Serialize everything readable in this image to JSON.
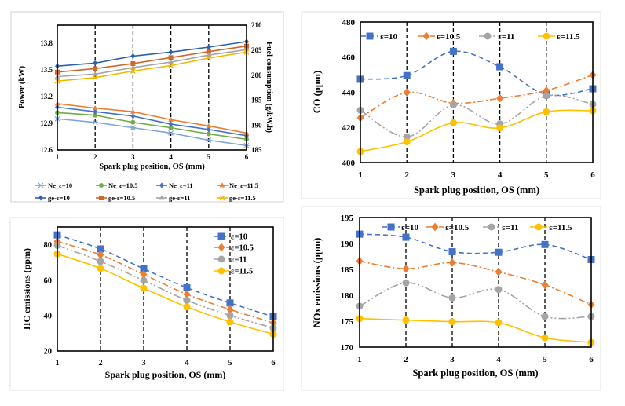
{
  "chart_data": [
    {
      "type": "line",
      "title": "",
      "xlabel": "Spark plug position, OS (mm)",
      "ylabel": "Power  (kW)",
      "y2label": "Fuel consumption  (g/kW.h)",
      "x": [
        1,
        2,
        3,
        4,
        5,
        6
      ],
      "xtick_labels": [
        "1",
        "2",
        "3",
        "4",
        "5",
        "6"
      ],
      "ylim": [
        12.6,
        14.0
      ],
      "ytick_labels": [
        "12.6",
        "12.9",
        "13.2",
        "13.5",
        "13.8"
      ],
      "y2lim": [
        185,
        210
      ],
      "y2tick_labels": [
        "185",
        "190",
        "195",
        "200",
        "205",
        "210"
      ],
      "grid": "vertical dashed lines at x ticks",
      "legend_position": "bottom",
      "series": [
        {
          "name": "Ne_ε=10",
          "axis": "left",
          "values": [
            12.95,
            12.91,
            12.85,
            12.79,
            12.71,
            12.65
          ],
          "color": "#7fa6d6",
          "marker": "asterisk",
          "dash": "solid"
        },
        {
          "name": "Ne_ε=10.5",
          "axis": "left",
          "values": [
            13.02,
            12.99,
            12.91,
            12.85,
            12.78,
            12.72
          ],
          "color": "#70ad47",
          "marker": "circle",
          "dash": "solid"
        },
        {
          "name": "Ne_ε=11",
          "axis": "left",
          "values": [
            13.08,
            13.03,
            12.98,
            12.89,
            12.83,
            12.76
          ],
          "color": "#4472c4",
          "marker": "diamond",
          "dash": "solid"
        },
        {
          "name": "Ne_ε=11.5",
          "axis": "left",
          "values": [
            13.12,
            13.07,
            13.03,
            12.94,
            12.87,
            12.79
          ],
          "color": "#ed7d31",
          "marker": "triangle",
          "dash": "solid"
        },
        {
          "name": "ge-ε=10",
          "axis": "right",
          "values": [
            201.8,
            202.4,
            203.8,
            204.6,
            205.6,
            206.7
          ],
          "color": "#2f5fb3",
          "marker": "diamond",
          "dash": "solid"
        },
        {
          "name": "ge-ε=10.5",
          "axis": "right",
          "values": [
            200.6,
            201.3,
            202.3,
            203.5,
            204.7,
            205.8
          ],
          "color": "#d0662a",
          "marker": "square",
          "dash": "solid"
        },
        {
          "name": "ge-ε=11",
          "axis": "right",
          "values": [
            199.7,
            200.2,
            201.5,
            202.6,
            204.0,
            205.1
          ],
          "color": "#a5a5a5",
          "marker": "triangle",
          "dash": "solid"
        },
        {
          "name": "ge-ε=11.5",
          "axis": "right",
          "values": [
            198.8,
            199.5,
            200.8,
            201.9,
            203.4,
            204.6
          ],
          "color": "#f2b800",
          "marker": "x",
          "dash": "solid"
        }
      ]
    },
    {
      "type": "line",
      "title": "",
      "xlabel": "Spark plug position, OS (mm)",
      "ylabel": "CO (ppm)",
      "x": [
        1,
        2,
        3,
        4,
        5,
        6
      ],
      "xtick_labels": [
        "1",
        "2",
        "3",
        "4",
        "5",
        "6"
      ],
      "ylim": [
        400,
        480
      ],
      "ytick_labels": [
        "400",
        "420",
        "440",
        "460",
        "480"
      ],
      "grid": "vertical dashed lines at x ticks",
      "legend_position": "top",
      "series": [
        {
          "name": "ε=10",
          "values": [
            447.4,
            449.5,
            463.3,
            454.5,
            438.7,
            442.0
          ],
          "color": "#4472c4",
          "marker": "square",
          "dash": "dash"
        },
        {
          "name": "ε=10.5",
          "values": [
            425.5,
            439.9,
            433.8,
            436.6,
            441.0,
            449.9
          ],
          "color": "#ed7d31",
          "marker": "diamond",
          "dash": "dashdot"
        },
        {
          "name": "ε=11",
          "values": [
            429.8,
            414.6,
            432.8,
            422.0,
            438.0,
            433.2
          ],
          "color": "#a5a5a5",
          "marker": "circle",
          "dash": "dashdotdot"
        },
        {
          "name": "ε=11.5",
          "values": [
            406.3,
            411.8,
            422.6,
            419.7,
            428.9,
            429.5
          ],
          "color": "#ffc000",
          "marker": "circle",
          "dash": "solid"
        }
      ]
    },
    {
      "type": "line",
      "title": "",
      "xlabel": "Spark plug position, OS (mm)",
      "ylabel": "HC emissions (ppm)",
      "x": [
        1,
        2,
        3,
        4,
        5,
        6
      ],
      "xtick_labels": [
        "1",
        "2",
        "3",
        "4",
        "5",
        "6"
      ],
      "ylim": [
        20,
        90
      ],
      "ytick_labels": [
        "20",
        "40",
        "60",
        "80"
      ],
      "grid": "vertical dashed lines at x ticks",
      "legend_position": "top-right",
      "series": [
        {
          "name": "ε=10",
          "values": [
            85.5,
            77.6,
            66.4,
            55.7,
            47.1,
            39.4
          ],
          "color": "#4472c4",
          "marker": "square",
          "dash": "dash"
        },
        {
          "name": "ε=10.5",
          "values": [
            81.8,
            74.3,
            63.2,
            52.0,
            43.4,
            35.9
          ],
          "color": "#ed7d31",
          "marker": "diamond",
          "dash": "dashdot"
        },
        {
          "name": "ε=11",
          "values": [
            79.6,
            70.6,
            59.8,
            48.6,
            40.0,
            33.0
          ],
          "color": "#a5a5a5",
          "marker": "circle",
          "dash": "dashdotdot"
        },
        {
          "name": "ε=11.5",
          "values": [
            74.8,
            66.6,
            55.4,
            44.9,
            36.4,
            29.5
          ],
          "color": "#ffc000",
          "marker": "circle",
          "dash": "solid"
        }
      ]
    },
    {
      "type": "line",
      "title": "",
      "xlabel": "Spark plug position, OS (mm)",
      "ylabel": "NOx emissions (ppm)",
      "x": [
        1,
        2,
        3,
        4,
        5,
        6
      ],
      "xtick_labels": [
        "1",
        "2",
        "3",
        "4",
        "5",
        "6"
      ],
      "ylim": [
        170,
        195
      ],
      "ytick_labels": [
        "170",
        "175",
        "180",
        "185",
        "190",
        "195"
      ],
      "grid": "vertical dashed lines at x ticks",
      "legend_position": "top",
      "series": [
        {
          "name": "ε=10",
          "values": [
            191.8,
            191.2,
            188.4,
            188.3,
            189.8,
            186.9
          ],
          "color": "#4472c4",
          "marker": "square",
          "dash": "dash"
        },
        {
          "name": "ε=10.5",
          "values": [
            186.6,
            185.1,
            186.3,
            184.5,
            182.0,
            178.2
          ],
          "color": "#ed7d31",
          "marker": "diamond",
          "dash": "dashdot"
        },
        {
          "name": "ε=11",
          "values": [
            177.9,
            182.4,
            179.5,
            181.1,
            175.9,
            175.9
          ],
          "color": "#a5a5a5",
          "marker": "circle",
          "dash": "dashdotdot"
        },
        {
          "name": "ε=11.5",
          "values": [
            175.5,
            175.2,
            174.9,
            174.7,
            171.8,
            170.9
          ],
          "color": "#ffc000",
          "marker": "circle",
          "dash": "solid"
        }
      ]
    }
  ]
}
